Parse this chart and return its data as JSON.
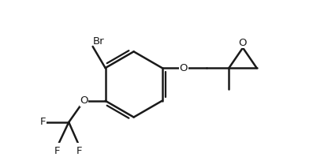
{
  "bg_color": "#ffffff",
  "line_color": "#1a1a1a",
  "line_width": 1.8,
  "font_size": 9.5,
  "font_weight": "normal",
  "figsize": [
    4.16,
    1.99
  ],
  "dpi": 100,
  "xlim": [
    -0.5,
    10.5
  ],
  "ylim": [
    -1.8,
    3.8
  ]
}
